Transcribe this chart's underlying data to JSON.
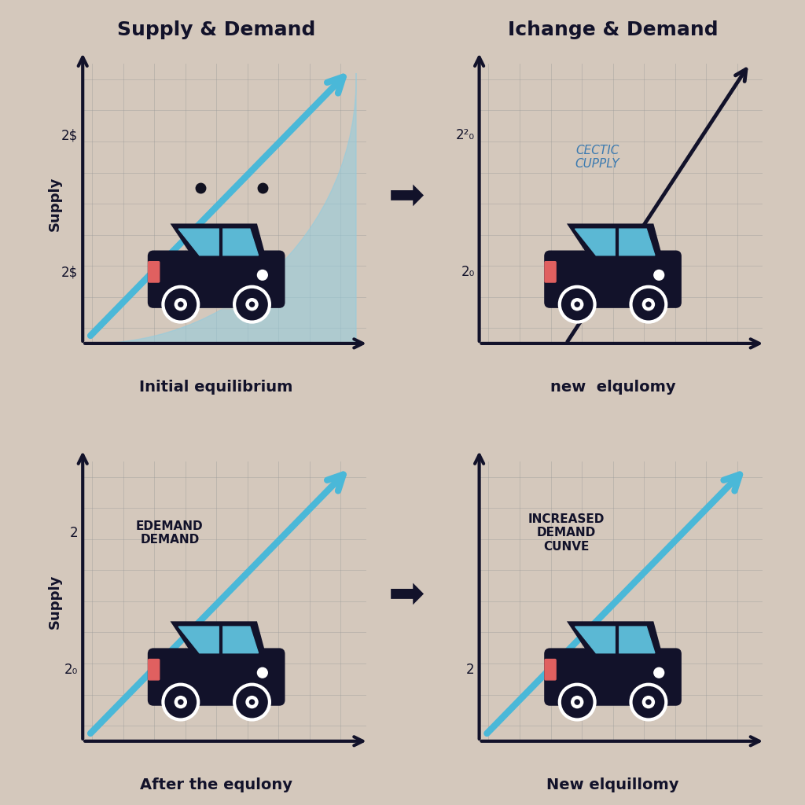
{
  "bg_color": "#d4c8bc",
  "panel_bg": "#f8f5f0",
  "grid_color": "#999999",
  "car_body": "#12122a",
  "car_window": "#5bb8d4",
  "car_highlight": "#e06060",
  "arrow_blue": "#4ab8d8",
  "arrow_dark": "#12122a",
  "text_dark": "#12122a",
  "text_blue": "#3b7ab0",
  "fill_blue": "#90cce0",
  "panels": [
    {
      "row": 0,
      "col": 0,
      "title": "Supply & Demand",
      "subtitle": "Initial equilibrium",
      "ylabel": "Supply",
      "fill_blob": true,
      "blue_arrow": true,
      "dark_line": false,
      "inline_label": "",
      "ytick_top": "2$",
      "ytick_bot": "2$",
      "transition_arrow": false,
      "two_dots": true
    },
    {
      "row": 0,
      "col": 1,
      "title": "Ichange & Demand",
      "subtitle": "new  elqulomy",
      "ylabel": "",
      "fill_blob": false,
      "blue_arrow": false,
      "dark_line": true,
      "inline_label": "CECTIC\nCUPPLY",
      "ytick_top": "2²₀",
      "ytick_bot": "2₀",
      "transition_arrow": true,
      "two_dots": false
    },
    {
      "row": 1,
      "col": 0,
      "title": "",
      "subtitle": "After the equlony",
      "ylabel": "Supply",
      "fill_blob": false,
      "blue_arrow": true,
      "dark_line": false,
      "inline_label": "EDEMAND\nDEMAND",
      "ytick_top": "2",
      "ytick_bot": "2₀",
      "transition_arrow": false,
      "two_dots": false
    },
    {
      "row": 1,
      "col": 1,
      "title": "",
      "subtitle": "New elquillomy",
      "ylabel": "",
      "fill_blob": false,
      "blue_arrow": true,
      "dark_line": false,
      "inline_label": "INCREASED\nDEMAND\nCUNVE",
      "ytick_top": "",
      "ytick_bot": "2",
      "transition_arrow": true,
      "two_dots": false
    }
  ]
}
